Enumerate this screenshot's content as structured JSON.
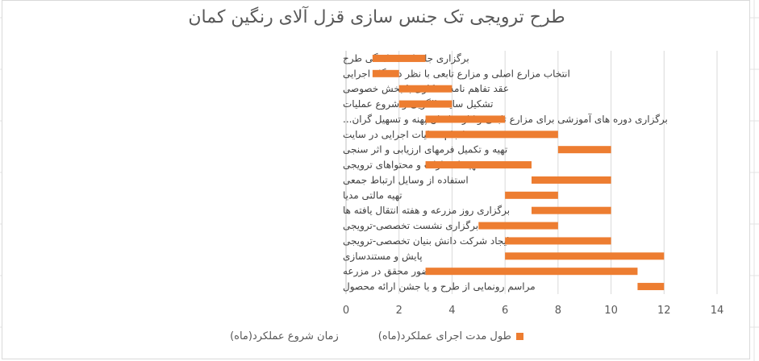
{
  "chart_data": {
    "type": "bar",
    "orientation": "horizontal",
    "stacked": true,
    "title": "طرح ترویجی تک جنس سازی قزل آلای رنگین کمان",
    "categories": [
      "برگزاری جلسات هماهنگی طرح",
      "انتخاب مزارع اصلی و مزارع تابعی با نظر دستگاه اجرایی",
      "عقد تفاهم نامه همکاری با بخش خصوصی",
      "تشکیل سایت الگویی و شروع عملیات",
      "برگزاری دوره های آموزشی برای مزارع تابعی و کارشناسان پهنه و تسهیل گران...",
      "انجام عملیات اجرایی در سایت",
      "تهیه و تکمیل فرمهای ارزیابی و اثر سنجی",
      "تهیه انتشارات و محتواهای ترویجی",
      "استفاده از وسایل ارتباط جمعی",
      "تهیه مالتی مدیا",
      "برگزاری روز مزرعه و هفته انتقال یافته ها",
      "برگزاری نشست تخصصی-ترویجی",
      "ایجاد شرکت دانش بنیان تخصصی-ترویجی",
      "پایش و مستندسازی",
      "حضور محقق در مزرعه",
      "مراسم رونمایی از طرح و یا جشن ارائه محصول"
    ],
    "series": [
      {
        "name": "زمان شروع عملکرد(ماه)",
        "values": [
          1,
          1,
          2,
          2,
          3,
          3,
          8,
          3,
          7,
          6,
          7,
          5,
          6,
          6,
          3,
          11
        ],
        "color": "none"
      },
      {
        "name": "طول مدت اجرای عملکرد(ماه)",
        "values": [
          2,
          1,
          2,
          2,
          3,
          5,
          2,
          4,
          3,
          2,
          3,
          3,
          4,
          6,
          8,
          1
        ],
        "color": "#ed7d31"
      }
    ],
    "xlim": [
      0,
      14
    ],
    "xticks": [
      "0",
      "2",
      "4",
      "6",
      "8",
      "10",
      "12",
      "14"
    ],
    "grid": true,
    "legend_position": "bottom"
  }
}
